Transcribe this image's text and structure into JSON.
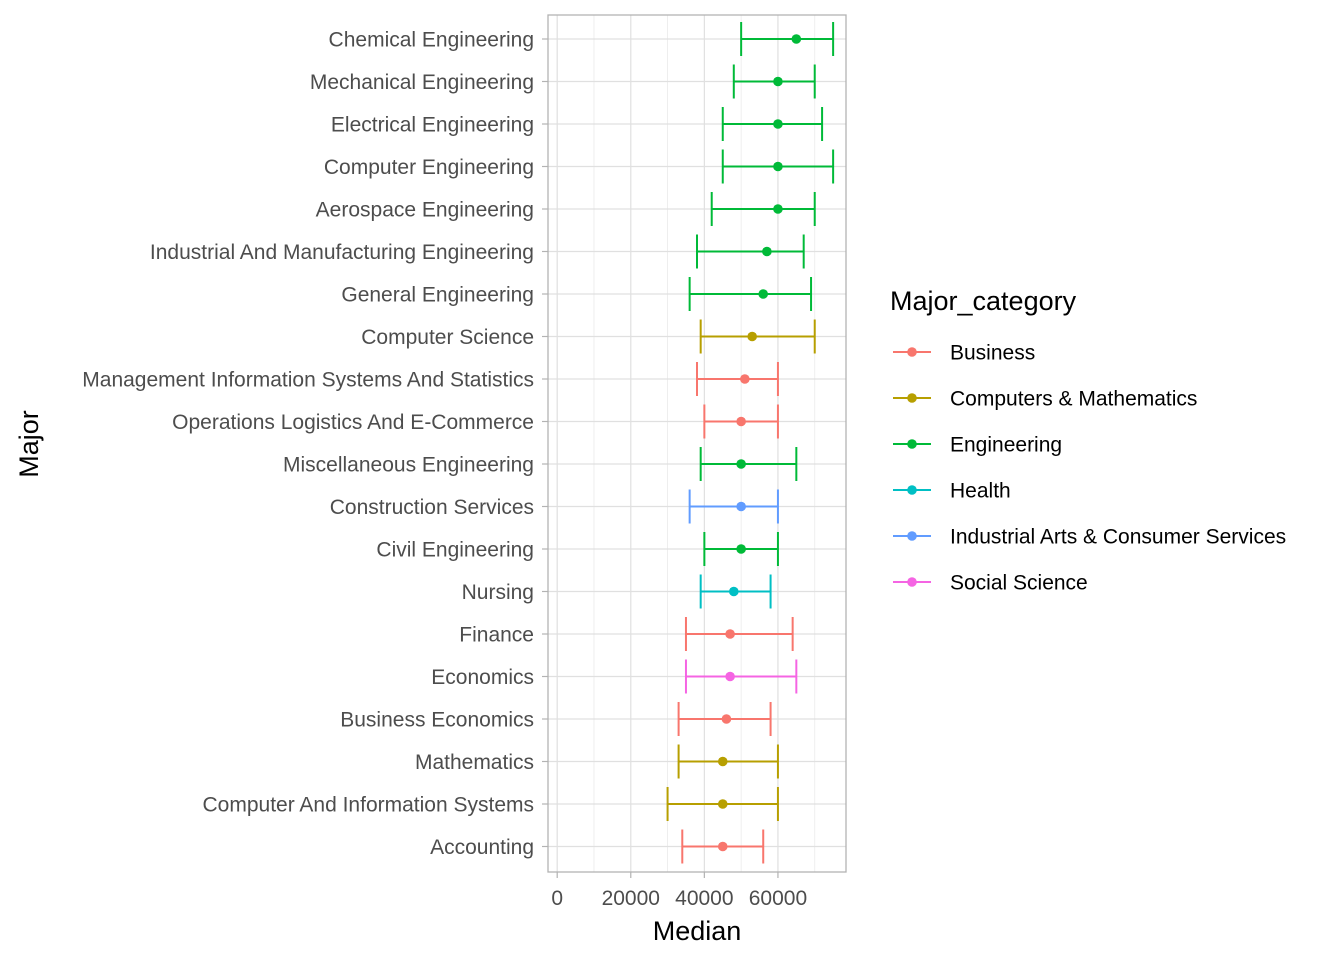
{
  "chart_data": {
    "type": "errorbar",
    "xlabel": "Median",
    "ylabel": "Major",
    "xlim": [
      -2500,
      78500
    ],
    "x_ticks": [
      0,
      20000,
      40000,
      60000
    ],
    "grid": true,
    "legend": {
      "title": "Major_category",
      "position": "right",
      "entries": [
        {
          "name": "Business",
          "color": "#F8766D"
        },
        {
          "name": "Computers & Mathematics",
          "color": "#B79F00"
        },
        {
          "name": "Engineering",
          "color": "#00BA38"
        },
        {
          "name": "Health",
          "color": "#00BFC4"
        },
        {
          "name": "Industrial Arts & Consumer Services",
          "color": "#619CFF"
        },
        {
          "name": "Social Science",
          "color": "#F564E3"
        }
      ]
    },
    "points": [
      {
        "major": "Chemical Engineering",
        "category": "Engineering",
        "median": 65000,
        "low": 50000,
        "high": 75000
      },
      {
        "major": "Mechanical Engineering",
        "category": "Engineering",
        "median": 60000,
        "low": 48000,
        "high": 70000
      },
      {
        "major": "Electrical Engineering",
        "category": "Engineering",
        "median": 60000,
        "low": 45000,
        "high": 72000
      },
      {
        "major": "Computer Engineering",
        "category": "Engineering",
        "median": 60000,
        "low": 45000,
        "high": 75000
      },
      {
        "major": "Aerospace Engineering",
        "category": "Engineering",
        "median": 60000,
        "low": 42000,
        "high": 70000
      },
      {
        "major": "Industrial And Manufacturing Engineering",
        "category": "Engineering",
        "median": 57000,
        "low": 38000,
        "high": 67000
      },
      {
        "major": "General Engineering",
        "category": "Engineering",
        "median": 56000,
        "low": 36000,
        "high": 69000
      },
      {
        "major": "Computer Science",
        "category": "Computers & Mathematics",
        "median": 53000,
        "low": 39000,
        "high": 70000
      },
      {
        "major": "Management Information Systems And Statistics",
        "category": "Business",
        "median": 51000,
        "low": 38000,
        "high": 60000
      },
      {
        "major": "Operations Logistics And E-Commerce",
        "category": "Business",
        "median": 50000,
        "low": 40000,
        "high": 60000
      },
      {
        "major": "Miscellaneous Engineering",
        "category": "Engineering",
        "median": 50000,
        "low": 39000,
        "high": 65000
      },
      {
        "major": "Construction Services",
        "category": "Industrial Arts & Consumer Services",
        "median": 50000,
        "low": 36000,
        "high": 60000
      },
      {
        "major": "Civil Engineering",
        "category": "Engineering",
        "median": 50000,
        "low": 40000,
        "high": 60000
      },
      {
        "major": "Nursing",
        "category": "Health",
        "median": 48000,
        "low": 39000,
        "high": 58000
      },
      {
        "major": "Finance",
        "category": "Business",
        "median": 47000,
        "low": 35000,
        "high": 64000
      },
      {
        "major": "Economics",
        "category": "Social Science",
        "median": 47000,
        "low": 35000,
        "high": 65000
      },
      {
        "major": "Business Economics",
        "category": "Business",
        "median": 46000,
        "low": 33000,
        "high": 58000
      },
      {
        "major": "Mathematics",
        "category": "Computers & Mathematics",
        "median": 45000,
        "low": 33000,
        "high": 60000
      },
      {
        "major": "Computer And Information Systems",
        "category": "Computers & Mathematics",
        "median": 45000,
        "low": 30000,
        "high": 60000
      },
      {
        "major": "Accounting",
        "category": "Business",
        "median": 45000,
        "low": 34000,
        "high": 56000
      }
    ]
  }
}
